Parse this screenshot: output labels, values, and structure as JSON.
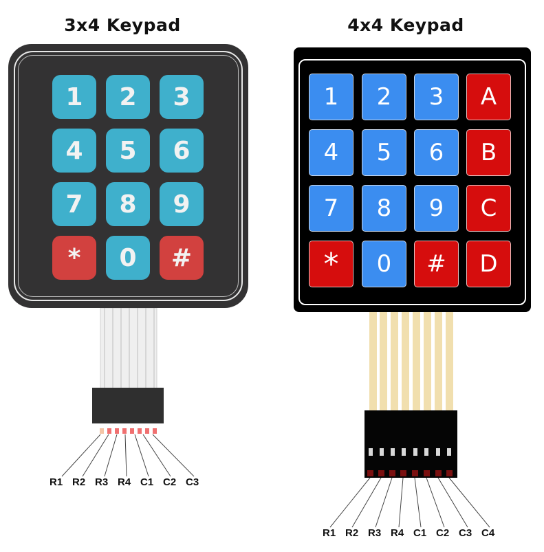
{
  "keypad_3x4": {
    "title": "3x4  Keypad",
    "keys": [
      [
        "1",
        "2",
        "3"
      ],
      [
        "4",
        "5",
        "6"
      ],
      [
        "7",
        "8",
        "9"
      ],
      [
        "*",
        "0",
        "#"
      ]
    ],
    "pins": [
      "R1",
      "R2",
      "R3",
      "R4",
      "C1",
      "C2",
      "C3"
    ],
    "colors": {
      "body": "#333233",
      "key_blue": "#3fb0cc",
      "key_red": "#d2413f"
    }
  },
  "keypad_4x4": {
    "title": "4x4  Keypad",
    "keys": [
      [
        "1",
        "2",
        "3",
        "A"
      ],
      [
        "4",
        "5",
        "6",
        "B"
      ],
      [
        "7",
        "8",
        "9",
        "C"
      ],
      [
        "*",
        "0",
        "#",
        "D"
      ]
    ],
    "pins": [
      "R1",
      "R2",
      "R3",
      "R4",
      "C1",
      "C2",
      "C3",
      "C4"
    ],
    "colors": {
      "body": "#000000",
      "key_blue": "#3b8df0",
      "key_red": "#d60d0d",
      "ribbon": "#f1dfae"
    }
  }
}
